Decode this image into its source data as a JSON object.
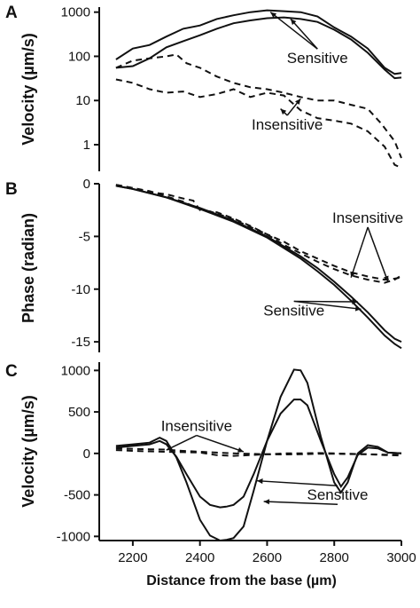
{
  "chart_data": [
    {
      "panel_label": "A",
      "type": "line",
      "ylabel": "Velocity (µm/s)",
      "yscale": "log",
      "ylim": [
        0.25,
        1300
      ],
      "xlim": [
        2100,
        3000
      ],
      "yticks": [
        1000,
        100,
        10,
        1
      ],
      "ytick_labels": [
        "1000",
        "100",
        "10",
        "1"
      ],
      "annotations": [
        {
          "text": "Sensitive",
          "x": 2750,
          "y": 70,
          "points_to": [
            {
              "x": 2610,
              "y": 1000
            },
            {
              "x": 2670,
              "y": 700
            }
          ]
        },
        {
          "text": "Insensitive",
          "x": 2660,
          "y": 2.2,
          "points_to": [
            {
              "x": 2640,
              "y": 6.5
            },
            {
              "x": 2700,
              "y": 11
            }
          ]
        }
      ],
      "series": [
        {
          "style": "solid",
          "x": [
            2150,
            2200,
            2250,
            2300,
            2350,
            2400,
            2450,
            2500,
            2550,
            2600,
            2650,
            2700,
            2750,
            2800,
            2850,
            2900,
            2950,
            2980,
            3000
          ],
          "y": [
            85,
            150,
            180,
            280,
            420,
            500,
            700,
            850,
            1000,
            1100,
            1050,
            1000,
            800,
            450,
            280,
            150,
            55,
            40,
            42
          ]
        },
        {
          "style": "solid",
          "x": [
            2150,
            2200,
            2250,
            2300,
            2350,
            2400,
            2450,
            2500,
            2550,
            2600,
            2650,
            2700,
            2750,
            2800,
            2850,
            2900,
            2950,
            2980,
            3000
          ],
          "y": [
            55,
            60,
            90,
            160,
            220,
            300,
            420,
            560,
            650,
            730,
            760,
            700,
            600,
            400,
            240,
            120,
            50,
            32,
            33
          ]
        },
        {
          "style": "dashed",
          "x": [
            2150,
            2200,
            2250,
            2300,
            2330,
            2360,
            2400,
            2450,
            2500,
            2550,
            2600,
            2650,
            2700,
            2750,
            2800,
            2850,
            2900,
            2940,
            2980,
            3000
          ],
          "y": [
            55,
            80,
            90,
            100,
            110,
            70,
            55,
            35,
            25,
            20,
            18,
            15,
            12,
            10,
            10,
            8,
            6.5,
            3,
            1.2,
            0.5
          ]
        },
        {
          "style": "dashed",
          "x": [
            2150,
            2200,
            2250,
            2300,
            2350,
            2400,
            2450,
            2500,
            2550,
            2600,
            2650,
            2700,
            2750,
            2800,
            2850,
            2900,
            2950,
            2980,
            3000
          ],
          "y": [
            30,
            25,
            18,
            15,
            16,
            12,
            14,
            18,
            12,
            15,
            13,
            6,
            4,
            3.5,
            3,
            2,
            0.9,
            0.35,
            0.3
          ]
        }
      ]
    },
    {
      "panel_label": "B",
      "type": "line",
      "ylabel": "Phase (radian)",
      "ylim": [
        -16,
        0
      ],
      "xlim": [
        2100,
        3000
      ],
      "yticks": [
        0,
        -5,
        -10,
        -15
      ],
      "ytick_labels": [
        "0",
        "-5",
        "-10",
        "-15"
      ],
      "annotations": [
        {
          "text": "Insensitive",
          "x": 2900,
          "y": -3.7,
          "points_to": [
            {
              "x": 2850,
              "y": -8.9
            },
            {
              "x": 2960,
              "y": -9.3
            }
          ]
        },
        {
          "text": "Sensitive",
          "x": 2680,
          "y": -12.5,
          "points_to": [
            {
              "x": 2870,
              "y": -11.2
            },
            {
              "x": 2880,
              "y": -11.9
            }
          ]
        }
      ],
      "series": [
        {
          "style": "solid",
          "x": [
            2150,
            2200,
            2300,
            2400,
            2500,
            2600,
            2700,
            2750,
            2800,
            2850,
            2900,
            2950,
            2980,
            3000
          ],
          "y": [
            -0.2,
            -0.5,
            -1.3,
            -2.3,
            -3.5,
            -5.0,
            -6.9,
            -8.0,
            -9.3,
            -10.7,
            -12.2,
            -13.9,
            -14.7,
            -15.0
          ]
        },
        {
          "style": "solid",
          "x": [
            2150,
            2200,
            2300,
            2400,
            2500,
            2600,
            2700,
            2750,
            2800,
            2850,
            2900,
            2950,
            2980,
            3000
          ],
          "y": [
            -0.2,
            -0.5,
            -1.3,
            -2.4,
            -3.6,
            -5.1,
            -7.1,
            -8.3,
            -9.6,
            -11.1,
            -12.7,
            -14.4,
            -15.2,
            -15.6
          ]
        },
        {
          "style": "dashed",
          "x": [
            2150,
            2200,
            2250,
            2300,
            2350,
            2380,
            2400,
            2450,
            2500,
            2550,
            2600,
            2650,
            2700,
            2750,
            2800,
            2850,
            2900,
            2950,
            2980,
            3000
          ],
          "y": [
            -0.1,
            -0.4,
            -0.8,
            -1.0,
            -1.4,
            -1.6,
            -2.5,
            -2.7,
            -3.3,
            -4.0,
            -4.8,
            -5.5,
            -6.4,
            -7.1,
            -7.8,
            -8.4,
            -8.8,
            -9.1,
            -9.0,
            -8.9
          ]
        },
        {
          "style": "dashed",
          "x": [
            2150,
            2200,
            2250,
            2300,
            2350,
            2400,
            2450,
            2500,
            2550,
            2600,
            2650,
            2700,
            2750,
            2800,
            2850,
            2900,
            2950,
            2980,
            3000
          ],
          "y": [
            -0.1,
            -0.4,
            -0.7,
            -1.2,
            -1.7,
            -2.4,
            -2.8,
            -3.4,
            -4.1,
            -4.8,
            -5.8,
            -6.6,
            -7.4,
            -8.1,
            -8.7,
            -9.1,
            -9.4,
            -9.1,
            -8.7
          ]
        }
      ]
    },
    {
      "panel_label": "C",
      "type": "line",
      "ylabel": "Velocity (µm/s)",
      "xlabel": "Distance from the base (µm)",
      "ylim": [
        -1050,
        1100
      ],
      "xlim": [
        2100,
        3000
      ],
      "yticks": [
        1000,
        500,
        0,
        -500,
        -1000
      ],
      "ytick_labels": [
        "1000",
        "500",
        "0",
        "-500",
        "-1000"
      ],
      "xticks": [
        2200,
        2400,
        2600,
        2800,
        3000
      ],
      "xtick_labels": [
        "2200",
        "2400",
        "2600",
        "2800",
        "3000"
      ],
      "annotations": [
        {
          "text": "Insensitive",
          "x": 2390,
          "y": 270,
          "points_to": [
            {
              "x": 2300,
              "y": 40
            },
            {
              "x": 2530,
              "y": 20
            }
          ]
        },
        {
          "text": "Sensitive",
          "x": 2810,
          "y": -560,
          "points_to": [
            {
              "x": 2570,
              "y": -330
            },
            {
              "x": 2590,
              "y": -580
            }
          ]
        }
      ],
      "series": [
        {
          "style": "solid",
          "x": [
            2150,
            2200,
            2250,
            2280,
            2300,
            2330,
            2360,
            2400,
            2430,
            2460,
            2480,
            2500,
            2530,
            2560,
            2600,
            2640,
            2680,
            2700,
            2720,
            2760,
            2800,
            2820,
            2840,
            2870,
            2900,
            2930,
            2960,
            3000
          ],
          "y": [
            90,
            110,
            130,
            190,
            150,
            -50,
            -350,
            -800,
            -990,
            -1050,
            -1040,
            -1020,
            -880,
            -450,
            150,
            680,
            1010,
            1000,
            850,
            200,
            -350,
            -470,
            -350,
            0,
            100,
            80,
            10,
            0
          ]
        },
        {
          "style": "solid",
          "x": [
            2150,
            2200,
            2250,
            2280,
            2300,
            2330,
            2360,
            2400,
            2430,
            2460,
            2480,
            2500,
            2530,
            2560,
            2600,
            2640,
            2680,
            2700,
            2720,
            2760,
            2800,
            2820,
            2840,
            2870,
            2900,
            2930,
            2960,
            3000
          ],
          "y": [
            70,
            90,
            110,
            150,
            110,
            -40,
            -250,
            -520,
            -620,
            -650,
            -640,
            -620,
            -520,
            -250,
            150,
            480,
            650,
            650,
            580,
            150,
            -250,
            -400,
            -290,
            -20,
            70,
            60,
            10,
            0
          ]
        },
        {
          "style": "dashed",
          "x": [
            2150,
            2200,
            2250,
            2300,
            2350,
            2400,
            2450,
            2500,
            2550,
            2600,
            2650,
            2700,
            2750,
            2800,
            2850,
            2900,
            2950,
            3000
          ],
          "y": [
            60,
            55,
            50,
            45,
            30,
            20,
            10,
            0,
            -5,
            -10,
            -12,
            -10,
            -5,
            -5,
            -8,
            -10,
            -15,
            -20
          ]
        },
        {
          "style": "dashed",
          "x": [
            2150,
            2200,
            2250,
            2300,
            2350,
            2400,
            2450,
            2500,
            2550,
            2600,
            2650,
            2700,
            2750,
            2800,
            2850,
            2900,
            2950,
            3000
          ],
          "y": [
            40,
            30,
            25,
            20,
            15,
            10,
            -20,
            -30,
            -20,
            -10,
            0,
            0,
            5,
            0,
            -5,
            -10,
            -20,
            -25
          ]
        }
      ]
    }
  ]
}
